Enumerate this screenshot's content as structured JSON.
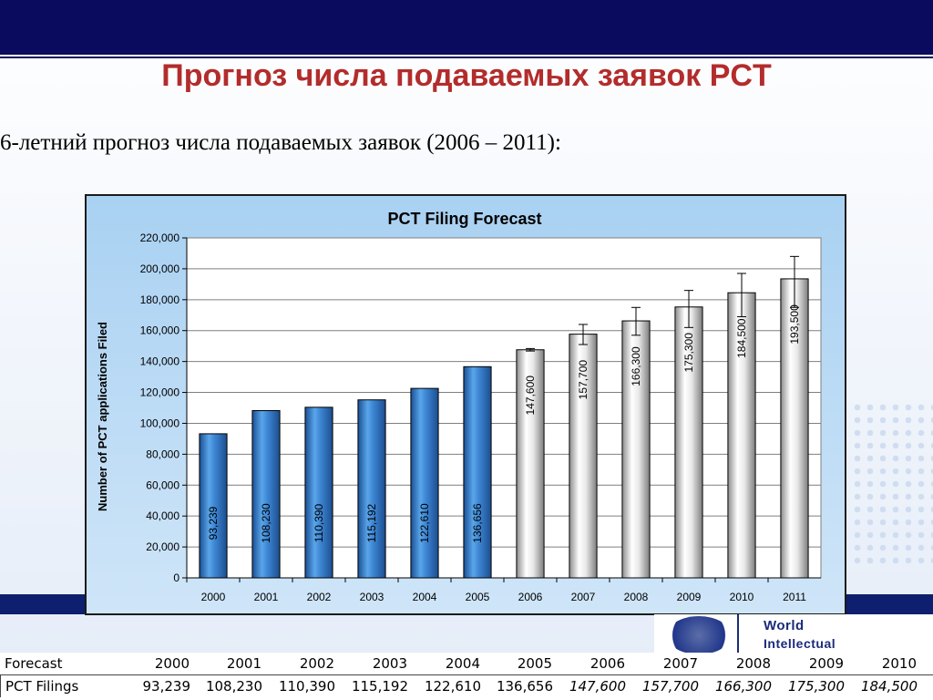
{
  "slide": {
    "title": "Прогноз числа подаваемых заявок PCT",
    "subtitle": "6-летний прогноз числа подаваемых заявок (2006 – 2011):"
  },
  "logo": {
    "line1": "World",
    "line2": "Intellectual"
  },
  "table": {
    "header_label": "Forecast",
    "row_label": "PCT Filings",
    "years": [
      "2000",
      "2001",
      "2002",
      "2003",
      "2004",
      "2005",
      "2006",
      "2007",
      "2008",
      "2009",
      "2010"
    ],
    "values": [
      "93,239",
      "108,230",
      "110,390",
      "115,192",
      "122,610",
      "136,656",
      "147,600",
      "157,700",
      "166,300",
      "175,300",
      "184,500"
    ]
  },
  "chart_data": {
    "type": "bar",
    "title": "PCT Filing Forecast",
    "ylabel": "Number of PCT applications Filed",
    "xlabel": "",
    "categories": [
      "2000",
      "2001",
      "2002",
      "2003",
      "2004",
      "2005",
      "2006",
      "2007",
      "2008",
      "2009",
      "2010",
      "2011"
    ],
    "values": [
      93239,
      108230,
      110390,
      115192,
      122610,
      136656,
      147600,
      157700,
      166300,
      175300,
      184500,
      193500
    ],
    "data_labels": [
      "93,239",
      "108,230",
      "110,390",
      "115,192",
      "122,610",
      "136,656",
      "147,600",
      "157,700",
      "166,300",
      "175,300",
      "184,500",
      "193,500"
    ],
    "forecast_from": "2006",
    "error_bars": {
      "2006": [
        146800,
        148400
      ],
      "2007": [
        151000,
        164000
      ],
      "2008": [
        157000,
        175000
      ],
      "2009": [
        162000,
        186000
      ],
      "2010": [
        169000,
        197000
      ],
      "2011": [
        175000,
        208000
      ]
    },
    "ylim": [
      0,
      220000
    ],
    "yticks": [
      "0",
      "20,000",
      "40,000",
      "60,000",
      "80,000",
      "100,000",
      "120,000",
      "140,000",
      "160,000",
      "180,000",
      "200,000",
      "220,000"
    ],
    "grid": true,
    "colors": {
      "actual": "#2a73c8",
      "forecast": "#f2f2f2",
      "plot_bg": "#ffffff"
    }
  }
}
